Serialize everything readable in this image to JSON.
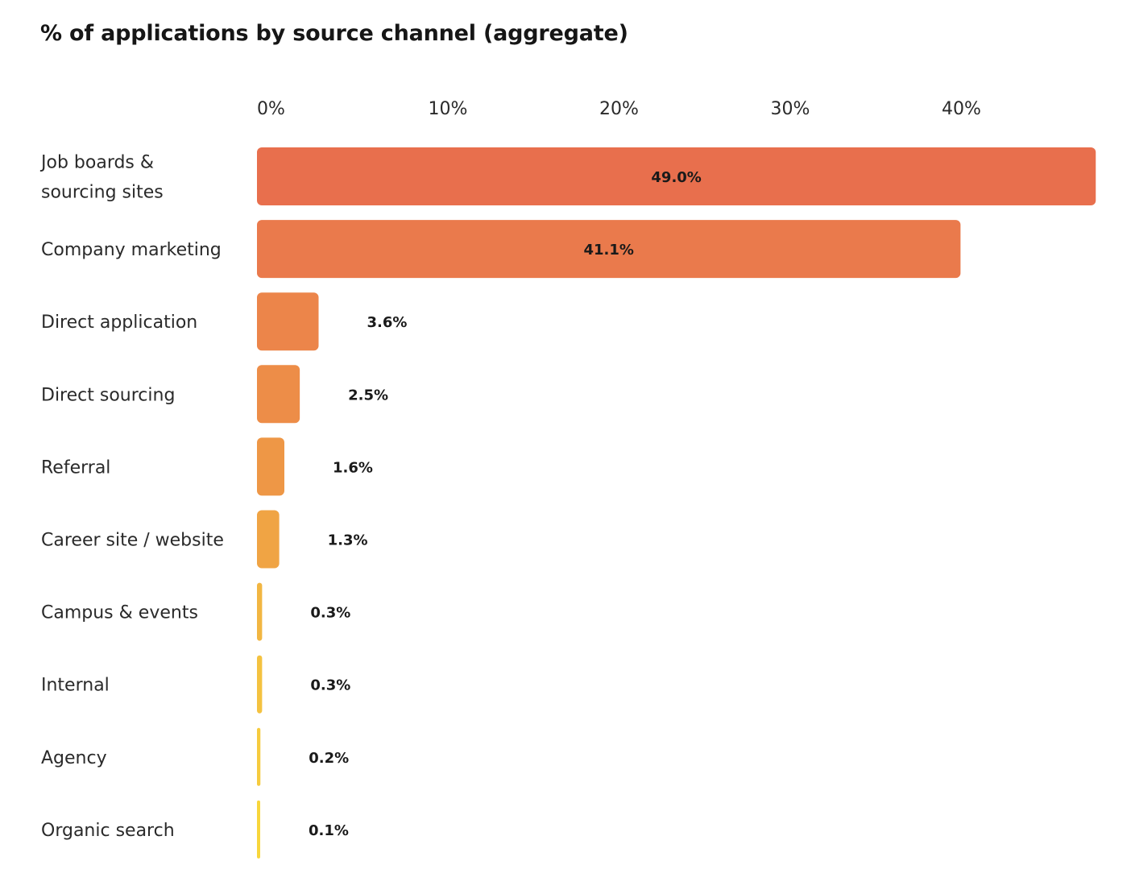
{
  "chart_data": {
    "type": "bar",
    "orientation": "horizontal",
    "title": "% of applications by source channel (aggregate)",
    "xlabel": "",
    "ylabel": "",
    "xlim": [
      0,
      48
    ],
    "grid": false,
    "axis_position": "top",
    "ticks": [
      "0%",
      "10%",
      "20%",
      "30%",
      "40%"
    ],
    "tick_values": [
      0,
      10,
      20,
      30,
      40
    ],
    "categories": [
      [
        "Job boards &",
        "sourcing sites"
      ],
      [
        "Company marketing"
      ],
      [
        "Direct application"
      ],
      [
        "Direct sourcing"
      ],
      [
        "Referral"
      ],
      [
        "Career site / website"
      ],
      [
        "Campus & events"
      ],
      [
        "Internal"
      ],
      [
        "Agency"
      ],
      [
        "Organic search"
      ]
    ],
    "values": [
      49.0,
      41.1,
      3.6,
      2.5,
      1.6,
      1.3,
      0.3,
      0.3,
      0.2,
      0.1
    ],
    "value_labels": [
      "49.0%",
      "41.1%",
      "3.6%",
      "2.5%",
      "1.6%",
      "1.3%",
      "0.3%",
      "0.3%",
      "0.2%",
      "0.1%"
    ],
    "colors": [
      "#e86f4d",
      "#ea7a4c",
      "#ec854a",
      "#ed8d48",
      "#ee9746",
      "#f0a444",
      "#f2b642",
      "#f4c240",
      "#f6cb3e",
      "#f8d63c"
    ]
  }
}
